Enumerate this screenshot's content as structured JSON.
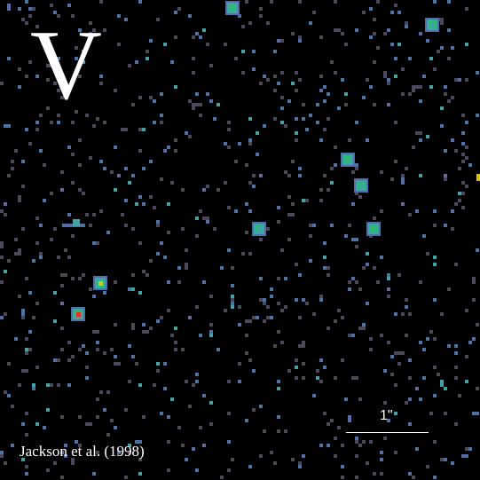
{
  "image": {
    "band_label": "V",
    "credit": "Jackson et al. (1998)",
    "scale_bar_label": "1\"",
    "background": "#000000",
    "palette": {
      "faint": "#4a4a5c",
      "blue": "#4f6fa6",
      "cyan": "#3fa3a8",
      "green": "#2eb87a",
      "yellow": "#e0c020",
      "red": "#e03020"
    }
  }
}
